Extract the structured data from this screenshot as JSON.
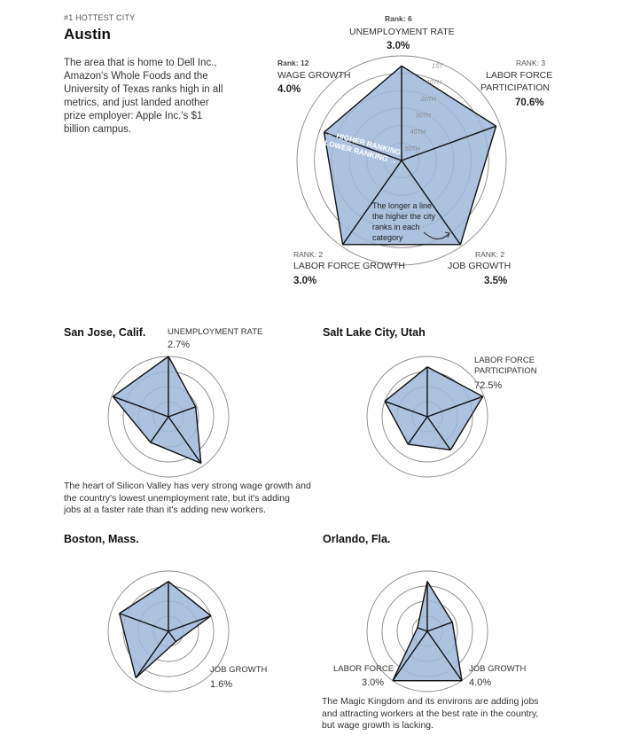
{
  "header": {
    "kicker": "#1 HOTTEST CITY",
    "city": "Austin",
    "description": "The area that is home to Dell Inc., Amazon's Whole Foods and the University of Texas ranks high in all metrics, and just landed another prize employer: Apple Inc.'s $1 billion campus."
  },
  "main_labels": {
    "unemployment": {
      "rank": "Rank: 6",
      "label": "UNEMPLOYMENT RATE",
      "value": "3.0%"
    },
    "labor_part": {
      "rank": "RANK: 3",
      "label1": "LABOR FORCE",
      "label2": "PARTICIPATION",
      "value": "70.6%"
    },
    "job_growth": {
      "rank": "RANK: 2",
      "label": "JOB GROWTH",
      "value": "3.5%"
    },
    "labor_growth": {
      "rank": "RANK: 2",
      "label": "LABOR FORCE GROWTH",
      "value": "3.0%"
    },
    "wage": {
      "rank": "Rank: 12",
      "label": "WAGE GROWTH",
      "value": "4.0%"
    }
  },
  "annotations": {
    "higher": "← HIGHER RANKING",
    "lower": "LOWER RANKING →",
    "note": [
      "The longer a line",
      "the higher the city",
      "ranks in each",
      "category"
    ],
    "ring_labels": [
      "1ST",
      "10TH",
      "20TH",
      "30TH",
      "40TH",
      "50TH"
    ]
  },
  "cities": {
    "san_jose": {
      "name": "San Jose, Calif.",
      "label": "UNEMPLOYMENT RATE",
      "value": "2.7%",
      "description": [
        "The heart of Silicon Valley has very strong wage growth and",
        "the country's lowest unemployment rate, but it's adding",
        "jobs at a faster rate than it's adding new workers."
      ]
    },
    "salt_lake": {
      "name": "Salt Lake City, Utah",
      "label1": "LABOR FORCE",
      "label2": "PARTICIPATION",
      "value": "72.5%"
    },
    "boston": {
      "name": "Boston, Mass.",
      "label": "JOB GROWTH",
      "value": "1.6%"
    },
    "orlando": {
      "name": "Orlando, Fla.",
      "label_lf": "LABOR FORCE",
      "value_lf": "3.0%",
      "label_jg": "JOB GROWTH",
      "value_jg": "4.0%",
      "description": [
        "The Magic Kingdom and its environs are adding jobs",
        "and attracting workers at the best rate in the country,",
        "but wage growth is lacking."
      ]
    }
  },
  "colors": {
    "fill": "#9db7d9",
    "stroke": "#6a8dbf",
    "line": "#111111",
    "ring": "#888888"
  },
  "chart_data": [
    {
      "type": "radar",
      "title": "Austin",
      "axes": [
        "Unemployment rate",
        "Labor force participation",
        "Job growth",
        "Labor force growth",
        "Wage growth"
      ],
      "scale": "rank (1 = outer edge)",
      "series": [
        {
          "name": "Austin",
          "values": [
            6,
            3,
            2,
            2,
            12
          ]
        }
      ]
    },
    {
      "type": "radar",
      "title": "San Jose, Calif.",
      "axes": [
        "Unemployment rate",
        "Labor force participation",
        "Job growth",
        "Labor force growth",
        "Wage growth"
      ],
      "series": [
        {
          "name": "San Jose, Calif.",
          "values": [
            1,
            28,
            4,
            26,
            2
          ]
        }
      ]
    },
    {
      "type": "radar",
      "title": "Salt Lake City, Utah",
      "axes": [
        "Unemployment rate",
        "Labor force participation",
        "Job growth",
        "Labor force growth",
        "Wage growth"
      ],
      "series": [
        {
          "name": "Salt Lake City, Utah",
          "values": [
            10,
            2,
            18,
            24,
            14
          ]
        }
      ]
    },
    {
      "type": "radar",
      "title": "Boston, Mass.",
      "axes": [
        "Unemployment rate",
        "Labor force participation",
        "Job growth",
        "Labor force growth",
        "Wage growth"
      ],
      "series": [
        {
          "name": "Boston, Mass.",
          "values": [
            10,
            14,
            42,
            4,
            8
          ]
        }
      ]
    },
    {
      "type": "radar",
      "title": "Orlando, Fla.",
      "axes": [
        "Unemployment rate",
        "Labor force participation",
        "Job growth",
        "Labor force growth",
        "Wage growth"
      ],
      "series": [
        {
          "name": "Orlando, Fla.",
          "values": [
            10,
            30,
            1,
            1,
            44
          ]
        }
      ]
    }
  ]
}
